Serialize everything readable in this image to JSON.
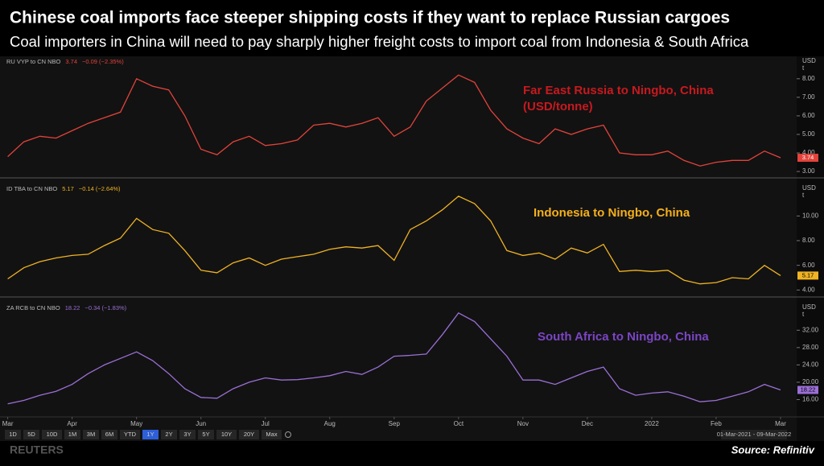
{
  "title": "Chinese coal imports face steeper shipping costs if they want to replace Russian cargoes",
  "subtitle": "Coal importers in China will need to pay sharply higher freight costs to import coal from Indonesia & South Africa",
  "chart_data": [
    {
      "type": "line",
      "annotation": [
        "Far East Russia to Ningbo, China",
        "(USD/tonne)"
      ],
      "axis_unit": [
        "USD",
        "t"
      ],
      "change": "−0.09 (−2.35%)",
      "x": [
        0,
        0.25,
        0.5,
        0.75,
        1,
        1.25,
        1.5,
        1.75,
        2,
        2.25,
        2.5,
        2.75,
        3,
        3.25,
        3.5,
        3.75,
        4,
        4.25,
        4.5,
        4.75,
        5,
        5.25,
        5.5,
        5.75,
        6,
        6.25,
        6.5,
        6.75,
        7,
        7.25,
        7.5,
        7.75,
        8,
        8.25,
        8.5,
        8.75,
        9,
        9.25,
        9.5,
        9.75,
        10,
        10.25,
        10.5,
        10.75,
        11,
        11.25,
        11.5,
        11.75,
        12
      ],
      "xlim": [
        -0.12,
        12.25
      ],
      "ylim": [
        2.7,
        8.6
      ],
      "yticks": [
        {
          "value": 3,
          "label": "3.00"
        },
        {
          "value": 4,
          "label": "4.00"
        },
        {
          "value": 5,
          "label": "5.00"
        },
        {
          "value": 6,
          "label": "6.00"
        },
        {
          "value": 7,
          "label": "7.00"
        },
        {
          "value": 8,
          "label": "8.00"
        }
      ],
      "series": [
        {
          "name": "RU VYP to CN NBO",
          "color": "#e2433b",
          "values": [
            3.8,
            4.6,
            4.9,
            4.8,
            5.2,
            5.6,
            5.9,
            6.2,
            8.0,
            7.6,
            7.4,
            6.0,
            4.2,
            3.9,
            4.6,
            4.9,
            4.4,
            4.5,
            4.7,
            5.5,
            5.6,
            5.4,
            5.6,
            5.9,
            4.9,
            5.4,
            6.8,
            7.5,
            8.2,
            7.8,
            6.3,
            5.3,
            4.8,
            4.5,
            5.3,
            5.0,
            5.3,
            5.5,
            4.0,
            3.9,
            3.9,
            4.1,
            3.6,
            3.3,
            3.5,
            3.6,
            3.6,
            4.1,
            3.74
          ],
          "value_labels": [
            null,
            null,
            null,
            null,
            null,
            null,
            null,
            null,
            null,
            null,
            null,
            null,
            null,
            null,
            null,
            null,
            null,
            null,
            null,
            null,
            null,
            null,
            null,
            null,
            null,
            null,
            null,
            null,
            null,
            null,
            null,
            null,
            null,
            null,
            null,
            null,
            null,
            null,
            null,
            null,
            null,
            null,
            null,
            null,
            null,
            null,
            null,
            null,
            "3.74"
          ]
        }
      ]
    },
    {
      "type": "line",
      "annotation": [
        "Indonesia to Ningbo, China"
      ],
      "axis_unit": [
        "USD",
        "t"
      ],
      "change": "−0.14 (−2.64%)",
      "x": [
        0,
        0.25,
        0.5,
        0.75,
        1,
        1.25,
        1.5,
        1.75,
        2,
        2.25,
        2.5,
        2.75,
        3,
        3.25,
        3.5,
        3.75,
        4,
        4.25,
        4.5,
        4.75,
        5,
        5.25,
        5.5,
        5.75,
        6,
        6.25,
        6.5,
        6.75,
        7,
        7.25,
        7.5,
        7.75,
        8,
        8.25,
        8.5,
        8.75,
        9,
        9.25,
        9.5,
        9.75,
        10,
        10.25,
        10.5,
        10.75,
        11,
        11.25,
        11.5,
        11.75,
        12
      ],
      "xlim": [
        -0.12,
        12.25
      ],
      "ylim": [
        3.5,
        12.5
      ],
      "yticks": [
        {
          "value": 4,
          "label": "4.00"
        },
        {
          "value": 6,
          "label": "6.00"
        },
        {
          "value": 8,
          "label": "8.00"
        },
        {
          "value": 10,
          "label": "10.00"
        }
      ],
      "series": [
        {
          "name": "ID TBA to CN NBO",
          "color": "#f0b323",
          "values": [
            4.9,
            5.8,
            6.3,
            6.6,
            6.8,
            6.9,
            7.6,
            8.2,
            9.8,
            8.9,
            8.6,
            7.2,
            5.6,
            5.4,
            6.2,
            6.6,
            6.0,
            6.5,
            6.7,
            6.9,
            7.3,
            7.5,
            7.4,
            7.6,
            6.4,
            8.9,
            9.6,
            10.5,
            11.6,
            11.0,
            9.6,
            7.2,
            6.8,
            7.0,
            6.5,
            7.4,
            7.0,
            7.7,
            5.5,
            5.6,
            5.5,
            5.6,
            4.8,
            4.5,
            4.6,
            5.0,
            4.9,
            6.0,
            5.17
          ],
          "value_labels": [
            null,
            null,
            null,
            null,
            null,
            null,
            null,
            null,
            null,
            null,
            null,
            null,
            null,
            null,
            null,
            null,
            null,
            null,
            null,
            null,
            null,
            null,
            null,
            null,
            null,
            null,
            null,
            null,
            null,
            null,
            null,
            null,
            null,
            null,
            null,
            null,
            null,
            null,
            null,
            null,
            null,
            null,
            null,
            null,
            null,
            null,
            null,
            null,
            "5.17"
          ]
        }
      ]
    },
    {
      "type": "line",
      "annotation": [
        "South Africa to Ningbo, China"
      ],
      "axis_unit": [
        "USD",
        "t"
      ],
      "change": "−0.34 (−1.83%)",
      "x": [
        0,
        0.25,
        0.5,
        0.75,
        1,
        1.25,
        1.5,
        1.75,
        2,
        2.25,
        2.5,
        2.75,
        3,
        3.25,
        3.5,
        3.75,
        4,
        4.25,
        4.5,
        4.75,
        5,
        5.25,
        5.5,
        5.75,
        6,
        6.25,
        6.5,
        6.75,
        7,
        7.25,
        7.5,
        7.75,
        8,
        8.25,
        8.5,
        8.75,
        9,
        9.25,
        9.5,
        9.75,
        10,
        10.25,
        10.5,
        10.75,
        11,
        11.25,
        11.5,
        11.75,
        12
      ],
      "xlim": [
        -0.12,
        12.25
      ],
      "xticks": [
        {
          "value": 0,
          "label": "Mar"
        },
        {
          "value": 1,
          "label": "Apr"
        },
        {
          "value": 2,
          "label": "May"
        },
        {
          "value": 3,
          "label": "Jun"
        },
        {
          "value": 4,
          "label": "Jul"
        },
        {
          "value": 5,
          "label": "Aug"
        },
        {
          "value": 6,
          "label": "Sep"
        },
        {
          "value": 7,
          "label": "Oct"
        },
        {
          "value": 8,
          "label": "Nov"
        },
        {
          "value": 9,
          "label": "Dec"
        },
        {
          "value": 10,
          "label": "2022"
        },
        {
          "value": 11,
          "label": "Feb"
        },
        {
          "value": 12,
          "label": "Mar"
        }
      ],
      "ylim": [
        12,
        38
      ],
      "yticks": [
        {
          "value": 16,
          "label": "16.00"
        },
        {
          "value": 20,
          "label": "20.00"
        },
        {
          "value": 24,
          "label": "24.00"
        },
        {
          "value": 28,
          "label": "28.00"
        },
        {
          "value": 32,
          "label": "32.00"
        }
      ],
      "series": [
        {
          "name": "ZA RCB to CN NBO",
          "color": "#9b6fd6",
          "values": [
            15.0,
            15.8,
            17.0,
            17.9,
            19.5,
            22.0,
            24.0,
            25.5,
            27.0,
            25.0,
            22.0,
            18.5,
            16.5,
            16.3,
            18.5,
            20.0,
            21.0,
            20.5,
            20.6,
            21.0,
            21.5,
            22.5,
            21.8,
            23.5,
            26.0,
            26.2,
            26.5,
            31.0,
            36.0,
            34.0,
            30.0,
            26.0,
            20.5,
            20.5,
            19.5,
            21.0,
            22.5,
            23.5,
            18.5,
            17.0,
            17.5,
            17.8,
            16.8,
            15.5,
            15.8,
            16.8,
            17.8,
            19.5,
            18.22
          ],
          "value_labels": [
            null,
            null,
            null,
            null,
            null,
            null,
            null,
            null,
            null,
            null,
            null,
            null,
            null,
            null,
            null,
            null,
            null,
            null,
            null,
            null,
            null,
            null,
            null,
            null,
            null,
            null,
            null,
            null,
            null,
            null,
            null,
            null,
            null,
            null,
            null,
            null,
            null,
            null,
            null,
            null,
            null,
            null,
            null,
            null,
            null,
            null,
            null,
            null,
            "18.22"
          ]
        }
      ]
    }
  ],
  "range_buttons": [
    "1D",
    "5D",
    "10D",
    "1M",
    "3M",
    "6M",
    "YTD",
    "1Y",
    "2Y",
    "3Y",
    "5Y",
    "10Y",
    "20Y",
    "Max"
  ],
  "active_range": 7,
  "date_range": "01-Mar-2021 - 09-Mar-2022",
  "logo": "REUTERS",
  "source": "Source: Refinitiv"
}
